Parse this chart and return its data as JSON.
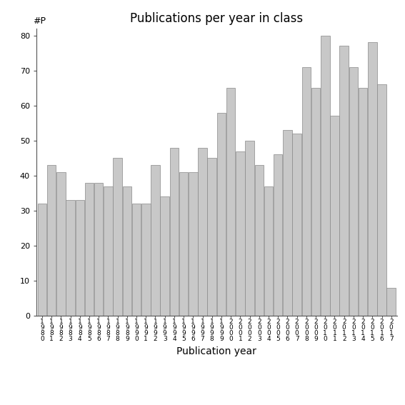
{
  "title": "Publications per year in class",
  "xlabel": "Publication year",
  "ylabel": "#P",
  "years": [
    "1980",
    "1981",
    "1982",
    "1983",
    "1984",
    "1985",
    "1986",
    "1987",
    "1988",
    "1989",
    "1990",
    "1991",
    "1992",
    "1993",
    "1994",
    "1995",
    "1996",
    "1997",
    "1998",
    "1999",
    "2000",
    "2001",
    "2002",
    "2003",
    "2004",
    "2005",
    "2006",
    "2007",
    "2008",
    "2009",
    "2010",
    "2011",
    "2012",
    "2013",
    "2014",
    "2015",
    "2016",
    "2017"
  ],
  "values": [
    32,
    43,
    41,
    33,
    33,
    38,
    38,
    37,
    45,
    37,
    32,
    32,
    43,
    34,
    48,
    41,
    41,
    48,
    45,
    58,
    65,
    47,
    50,
    43,
    37,
    46,
    53,
    52,
    71,
    65,
    80,
    57,
    77,
    71,
    65,
    78,
    66,
    8
  ],
  "bar_color": "#c8c8c8",
  "bar_edge_color": "#888888",
  "background_color": "#ffffff",
  "ylim": [
    0,
    82
  ],
  "yticks": [
    0,
    10,
    20,
    30,
    40,
    50,
    60,
    70,
    80
  ],
  "title_fontsize": 12,
  "xlabel_fontsize": 10,
  "tick_fontsize": 8
}
